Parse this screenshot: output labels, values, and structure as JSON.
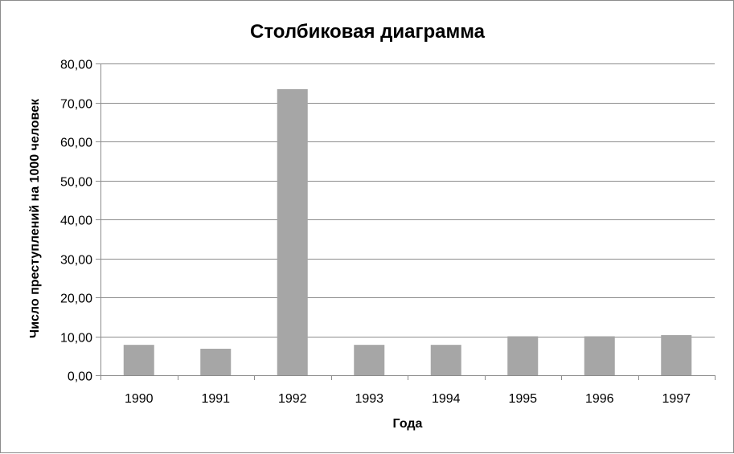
{
  "chart_data": {
    "type": "bar",
    "title": "Столбиковая диаграмма",
    "xlabel": "Года",
    "ylabel": "Число преступлений на 1000 человек",
    "categories": [
      "1990",
      "1991",
      "1992",
      "1993",
      "1994",
      "1995",
      "1996",
      "1997"
    ],
    "values": [
      7.8,
      6.8,
      73.4,
      7.8,
      7.8,
      10.0,
      10.0,
      10.3
    ],
    "ylim": [
      0,
      80
    ],
    "yticks": [
      "0,00",
      "10,00",
      "20,00",
      "30,00",
      "40,00",
      "50,00",
      "60,00",
      "70,00",
      "80,00"
    ],
    "grid": true,
    "legend": "none",
    "bar_color": "#a6a6a6"
  }
}
